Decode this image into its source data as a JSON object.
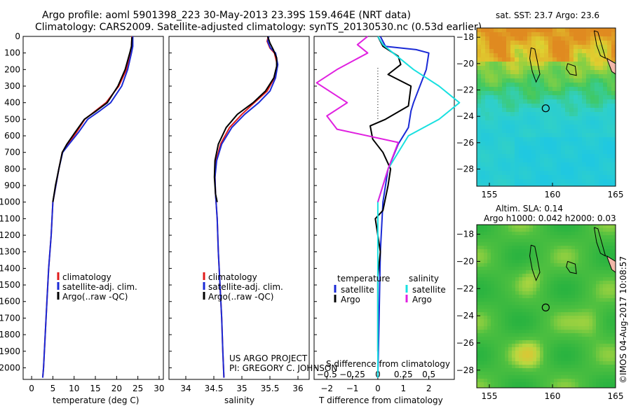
{
  "title_line1": "Argo profile: aoml 5901398_223 30-May-2013 23.39S 159.464E (NRT data)",
  "title_line2": "Climatology: CARS2009. Satellite-adjusted climatology: synTS_20130530.nc (0.53d earlier)",
  "project_note": "US ARGO PROJECT",
  "pi_note": "PI: GREGORY C. JOHNSON",
  "imos_stamp": "©IMOS 04-Aug-2017 10:08:57",
  "colors": {
    "red": "#e01b1b",
    "blue": "#1a2ad6",
    "black": "#000000",
    "cyan": "#19e0e0",
    "magenta": "#e020e0"
  },
  "chart_data": [
    {
      "name": "temperature-profile",
      "type": "line",
      "xlabel": "temperature (deg C)",
      "ylabel": "",
      "xlim": [
        -2,
        31
      ],
      "ylim": [
        2070,
        0
      ],
      "xticks": [
        0,
        5,
        10,
        15,
        20,
        25,
        30
      ],
      "yticks": [
        0,
        100,
        200,
        300,
        400,
        500,
        600,
        700,
        800,
        900,
        1000,
        1100,
        1200,
        1300,
        1400,
        1500,
        1600,
        1700,
        1800,
        1900,
        2000
      ],
      "legend": [
        "climatology",
        "satellite-adj. clim.",
        "Argo(..raw -QC)"
      ],
      "series": [
        {
          "name": "climatology",
          "color": "red",
          "points": [
            [
              23.6,
              0
            ],
            [
              23.5,
              60
            ],
            [
              23.2,
              100
            ],
            [
              22.3,
              200
            ],
            [
              20.5,
              300
            ],
            [
              17.5,
              400
            ],
            [
              15.0,
              450
            ],
            [
              12.5,
              500
            ],
            [
              10.5,
              580
            ],
            [
              8.5,
              650
            ],
            [
              7.2,
              700
            ],
            [
              6.4,
              800
            ],
            [
              5.7,
              900
            ],
            [
              5.0,
              1000
            ],
            [
              4.6,
              1200
            ],
            [
              4.0,
              1400
            ],
            [
              3.6,
              1600
            ],
            [
              3.2,
              1800
            ],
            [
              2.8,
              2000
            ],
            [
              2.6,
              2060
            ]
          ]
        },
        {
          "name": "satellite-adj. clim.",
          "color": "blue",
          "points": [
            [
              23.8,
              0
            ],
            [
              23.8,
              60
            ],
            [
              23.5,
              100
            ],
            [
              22.6,
              200
            ],
            [
              21.2,
              300
            ],
            [
              18.6,
              400
            ],
            [
              16.0,
              450
            ],
            [
              13.2,
              500
            ],
            [
              11.0,
              580
            ],
            [
              8.8,
              650
            ],
            [
              7.3,
              700
            ],
            [
              6.4,
              800
            ],
            [
              5.7,
              900
            ],
            [
              5.0,
              1000
            ],
            [
              4.6,
              1200
            ],
            [
              4.0,
              1400
            ],
            [
              3.6,
              1600
            ],
            [
              3.2,
              1800
            ],
            [
              2.8,
              2000
            ],
            [
              2.6,
              2060
            ]
          ]
        },
        {
          "name": "Argo(..raw -QC)",
          "color": "black",
          "points": [
            [
              23.6,
              5
            ],
            [
              23.5,
              60
            ],
            [
              23.1,
              100
            ],
            [
              22.0,
              200
            ],
            [
              20.3,
              300
            ],
            [
              17.8,
              400
            ],
            [
              15.2,
              450
            ],
            [
              12.4,
              500
            ],
            [
              10.2,
              580
            ],
            [
              8.3,
              650
            ],
            [
              7.2,
              700
            ],
            [
              6.4,
              800
            ],
            [
              5.6,
              900
            ],
            [
              5.0,
              1000
            ]
          ]
        }
      ]
    },
    {
      "name": "salinity-profile",
      "type": "line",
      "xlabel": "salinity",
      "ylabel": "",
      "xlim": [
        33.7,
        36.2
      ],
      "ylim": [
        2070,
        0
      ],
      "xticks": [
        34,
        34.5,
        35,
        35.5,
        36
      ],
      "xtick_labels": [
        "34",
        "34.5",
        "35",
        "35.5",
        "36"
      ],
      "legend": [
        "climatology",
        "satellite-adj. clim.",
        "Argo(..raw -QC)"
      ],
      "series": [
        {
          "name": "climatology",
          "color": "red",
          "points": [
            [
              35.47,
              0
            ],
            [
              35.45,
              30
            ],
            [
              35.5,
              70
            ],
            [
              35.58,
              100
            ],
            [
              35.63,
              170
            ],
            [
              35.58,
              250
            ],
            [
              35.45,
              330
            ],
            [
              35.22,
              400
            ],
            [
              35.0,
              470
            ],
            [
              34.78,
              550
            ],
            [
              34.62,
              650
            ],
            [
              34.54,
              750
            ],
            [
              34.52,
              850
            ],
            [
              34.53,
              950
            ],
            [
              34.56,
              1100
            ],
            [
              34.58,
              1300
            ],
            [
              34.61,
              1500
            ],
            [
              34.64,
              1700
            ],
            [
              34.66,
              1900
            ],
            [
              34.68,
              2060
            ]
          ]
        },
        {
          "name": "satellite-adj. clim.",
          "color": "blue",
          "points": [
            [
              35.48,
              0
            ],
            [
              35.46,
              30
            ],
            [
              35.51,
              70
            ],
            [
              35.6,
              100
            ],
            [
              35.64,
              170
            ],
            [
              35.6,
              250
            ],
            [
              35.5,
              330
            ],
            [
              35.3,
              400
            ],
            [
              35.05,
              470
            ],
            [
              34.82,
              550
            ],
            [
              34.64,
              650
            ],
            [
              34.55,
              750
            ],
            [
              34.52,
              850
            ],
            [
              34.53,
              950
            ],
            [
              34.56,
              1100
            ],
            [
              34.58,
              1300
            ],
            [
              34.61,
              1500
            ],
            [
              34.64,
              1700
            ],
            [
              34.66,
              1900
            ],
            [
              34.68,
              2060
            ]
          ]
        },
        {
          "name": "Argo(..raw -QC)",
          "color": "black",
          "points": [
            [
              35.46,
              0
            ],
            [
              35.5,
              40
            ],
            [
              35.56,
              80
            ],
            [
              35.62,
              130
            ],
            [
              35.62,
              180
            ],
            [
              35.57,
              250
            ],
            [
              35.42,
              330
            ],
            [
              35.2,
              400
            ],
            [
              34.92,
              470
            ],
            [
              34.72,
              550
            ],
            [
              34.58,
              650
            ],
            [
              34.52,
              750
            ],
            [
              34.51,
              850
            ],
            [
              34.53,
              950
            ],
            [
              34.56,
              1000
            ]
          ]
        }
      ]
    },
    {
      "name": "difference-profile",
      "type": "line",
      "xlabel_top": "S difference from climatology",
      "xlabel": "T difference from climatology",
      "xlim": [
        -2.5,
        3
      ],
      "ylim": [
        2070,
        0
      ],
      "xticks": [
        -2,
        -1,
        0,
        1,
        2
      ],
      "xtick_labels": [
        "−2",
        "−1",
        "0",
        "1",
        "2"
      ],
      "top_ticks": [
        -0.5,
        -0.25,
        0,
        0.25,
        0.5
      ],
      "top_tick_labels": [
        "−0.5",
        "−0.25",
        "0",
        "0.25",
        "0.5"
      ],
      "legend_groups": [
        {
          "title": "temperature",
          "items": [
            {
              "label": "satellite",
              "color": "blue"
            },
            {
              "label": "Argo",
              "color": "black"
            }
          ]
        },
        {
          "title": "salinity",
          "items": [
            {
              "label": "satellite",
              "color": "cyan"
            },
            {
              "label": "Argo",
              "color": "magenta"
            }
          ]
        }
      ],
      "series": [
        {
          "name": "T satellite",
          "color": "blue",
          "points": [
            [
              0.1,
              0
            ],
            [
              0.3,
              60
            ],
            [
              1.5,
              80
            ],
            [
              2.0,
              100
            ],
            [
              1.9,
              200
            ],
            [
              1.4,
              400
            ],
            [
              1.3,
              450
            ],
            [
              1.2,
              550
            ],
            [
              0.8,
              650
            ],
            [
              0.4,
              800
            ],
            [
              0.2,
              1000
            ],
            [
              0.1,
              1300
            ],
            [
              0.05,
              1700
            ],
            [
              0,
              2060
            ]
          ]
        },
        {
          "name": "T Argo",
          "color": "black",
          "points": [
            [
              0,
              0
            ],
            [
              0.2,
              60
            ],
            [
              0.8,
              120
            ],
            [
              0.9,
              170
            ],
            [
              0.4,
              230
            ],
            [
              1.3,
              300
            ],
            [
              1.2,
              420
            ],
            [
              0.3,
              500
            ],
            [
              -0.3,
              540
            ],
            [
              -0.2,
              620
            ],
            [
              0.2,
              700
            ],
            [
              0.5,
              800
            ],
            [
              0.4,
              900
            ],
            [
              0.2,
              1050
            ],
            [
              -0.1,
              1100
            ],
            [
              0.1,
              1300
            ],
            [
              0,
              1450
            ],
            [
              0,
              1900
            ]
          ]
        },
        {
          "name": "S satellite",
          "color": "cyan",
          "points": [
            [
              0,
              0
            ],
            [
              0.05,
              50
            ],
            [
              0.15,
              100
            ],
            [
              0.35,
              200
            ],
            [
              0.6,
              300
            ],
            [
              0.8,
              400
            ],
            [
              0.6,
              500
            ],
            [
              0.3,
              600
            ],
            [
              0.1,
              800
            ],
            [
              0,
              1000
            ],
            [
              0,
              1500
            ],
            [
              0,
              2060
            ]
          ]
        },
        {
          "name": "S Argo",
          "color": "magenta",
          "points": [
            [
              -0.1,
              0
            ],
            [
              -0.2,
              50
            ],
            [
              -0.1,
              100
            ],
            [
              -0.4,
              200
            ],
            [
              -0.6,
              280
            ],
            [
              -0.3,
              400
            ],
            [
              -0.5,
              480
            ],
            [
              -0.4,
              560
            ],
            [
              0.2,
              640
            ],
            [
              0.1,
              800
            ],
            [
              0,
              1000
            ]
          ]
        }
      ]
    },
    {
      "name": "sst-map",
      "type": "heatmap",
      "title": "sat. SST: 23.7  Argo: 23.6",
      "xlim": [
        154,
        165
      ],
      "ylim": [
        -29.3,
        -17.3
      ],
      "xticks": [
        155,
        160,
        165
      ],
      "yticks": [
        -18,
        -20,
        -22,
        -24,
        -26,
        -28
      ],
      "argo_position": [
        159.464,
        -23.39
      ]
    },
    {
      "name": "sla-map",
      "type": "heatmap",
      "title_line1": "Altim. SLA: 0.14",
      "title_line2": "Argo h1000: 0.042 h2000: 0.03",
      "xlim": [
        154,
        165
      ],
      "ylim": [
        -29.3,
        -17.3
      ],
      "xticks": [
        155,
        160,
        165
      ],
      "yticks": [
        -18,
        -20,
        -22,
        -24,
        -26,
        -28
      ],
      "argo_position": [
        159.464,
        -23.39
      ]
    }
  ]
}
